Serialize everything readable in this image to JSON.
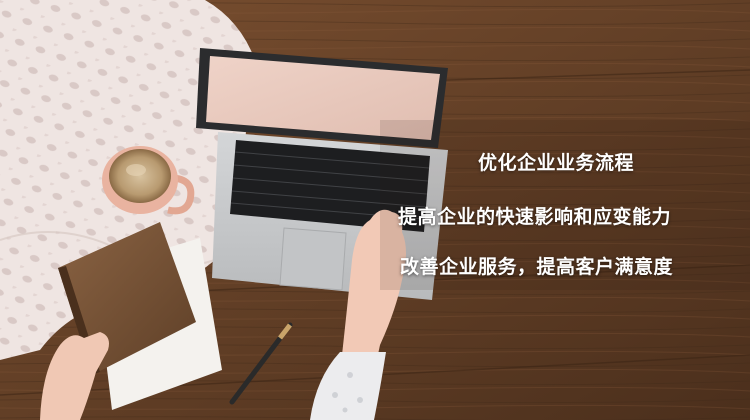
{
  "lines": [
    "优化企业业务流程",
    "提高企业的快速影响和应变能力",
    "改善企业服务，提高客户满意度"
  ],
  "colors": {
    "table_wood": "#6b4428",
    "cloth": "#ece2df",
    "laptop_body": "#c9cbcd",
    "screen": "#e8c9bd",
    "notebook_cover": "#7a5638",
    "caption_text": "#ffffff"
  }
}
